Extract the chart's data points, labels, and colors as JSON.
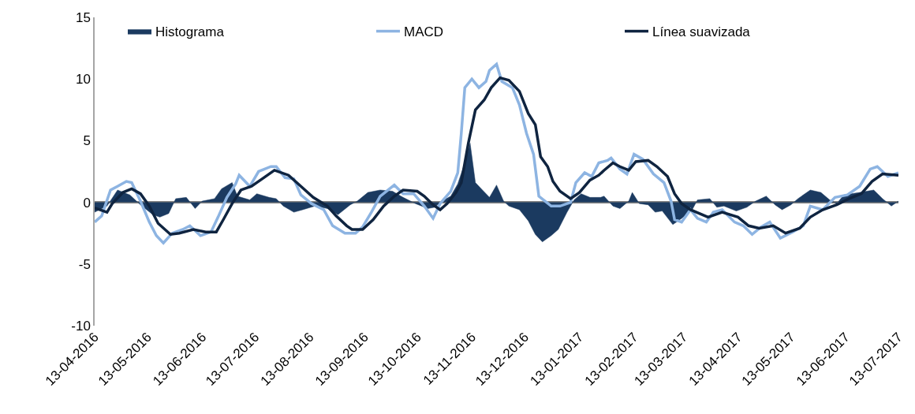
{
  "chart_data": {
    "type": "line",
    "legend": "top",
    "grid": false,
    "marker": "none",
    "line_style": "solid",
    "ref_lines": [
      {
        "axis": "y",
        "value": 0,
        "color": "#808080"
      }
    ],
    "ylim": [
      -10,
      15
    ],
    "yticks": [
      -10,
      -5,
      0,
      5,
      10,
      15
    ],
    "xlim": [
      "2016-04-13",
      "2017-07-13"
    ],
    "xticks": [
      {
        "value": "2016-04-13",
        "label": "13-04-2016"
      },
      {
        "value": "2016-05-13",
        "label": "13-05-2016"
      },
      {
        "value": "2016-06-13",
        "label": "13-06-2016"
      },
      {
        "value": "2016-07-13",
        "label": "13-07-2016"
      },
      {
        "value": "2016-08-13",
        "label": "13-08-2016"
      },
      {
        "value": "2016-09-13",
        "label": "13-09-2016"
      },
      {
        "value": "2016-10-13",
        "label": "13-10-2016"
      },
      {
        "value": "2016-11-13",
        "label": "13-11-2016"
      },
      {
        "value": "2016-12-13",
        "label": "13-12-2016"
      },
      {
        "value": "2017-01-13",
        "label": "13-01-2017"
      },
      {
        "value": "2017-02-13",
        "label": "13-02-2017"
      },
      {
        "value": "2017-03-13",
        "label": "13-03-2017"
      },
      {
        "value": "2017-04-13",
        "label": "13-04-2017"
      },
      {
        "value": "2017-05-13",
        "label": "13-05-2017"
      },
      {
        "value": "2017-06-13",
        "label": "13-06-2017"
      },
      {
        "value": "2017-07-13",
        "label": "13-07-2017"
      }
    ],
    "series": [
      {
        "name": "Histograma",
        "type": "area",
        "color": "#1b3a60",
        "x": [
          "2016-04-13",
          "2016-04-20",
          "2016-04-26",
          "2016-05-03",
          "2016-05-09",
          "2016-05-16",
          "2016-05-20",
          "2016-05-25",
          "2016-05-29",
          "2016-06-04",
          "2016-06-09",
          "2016-06-13",
          "2016-06-20",
          "2016-06-24",
          "2016-06-30",
          "2016-07-03",
          "2016-07-10",
          "2016-07-14",
          "2016-07-21",
          "2016-07-25",
          "2016-07-29",
          "2016-08-04",
          "2016-08-09",
          "2016-08-16",
          "2016-08-23",
          "2016-08-29",
          "2016-09-05",
          "2016-09-09",
          "2016-09-15",
          "2016-09-22",
          "2016-09-29",
          "2016-10-05",
          "2016-10-12",
          "2016-10-19",
          "2016-10-23",
          "2016-10-27",
          "2016-11-01",
          "2016-11-05",
          "2016-11-09",
          "2016-11-12",
          "2016-11-15",
          "2016-11-19",
          "2016-11-23",
          "2016-11-27",
          "2016-12-01",
          "2016-12-04",
          "2016-12-10",
          "2016-12-15",
          "2016-12-19",
          "2016-12-23",
          "2016-12-28",
          "2017-01-01",
          "2017-01-06",
          "2017-01-10",
          "2017-01-14",
          "2017-01-19",
          "2017-01-25",
          "2017-01-27",
          "2017-02-01",
          "2017-02-05",
          "2017-02-10",
          "2017-02-12",
          "2017-02-16",
          "2017-02-21",
          "2017-02-25",
          "2017-03-01",
          "2017-03-07",
          "2017-03-12",
          "2017-03-18",
          "2017-03-21",
          "2017-03-28",
          "2017-04-01",
          "2017-04-05",
          "2017-04-12",
          "2017-04-18",
          "2017-04-23",
          "2017-04-29",
          "2017-05-04",
          "2017-05-08",
          "2017-05-13",
          "2017-05-17",
          "2017-05-24",
          "2017-05-30",
          "2017-06-04",
          "2017-06-08",
          "2017-06-12",
          "2017-06-21",
          "2017-06-29",
          "2017-07-04",
          "2017-07-09",
          "2017-07-13"
        ],
        "values": [
          -0.8,
          -0.3,
          1.0,
          0.6,
          -0.2,
          -1.0,
          -1.2,
          -0.9,
          0.3,
          0.4,
          -0.5,
          0.1,
          0.3,
          1.1,
          1.6,
          0.5,
          0.2,
          0.7,
          0.4,
          0.3,
          -0.3,
          -0.8,
          -0.6,
          -0.3,
          -0.5,
          -1.0,
          -0.2,
          0.1,
          0.8,
          1.0,
          0.9,
          0.4,
          -0.1,
          -0.5,
          -0.4,
          0.1,
          0.5,
          1.5,
          3.2,
          4.8,
          1.6,
          1.0,
          0.4,
          1.4,
          0.1,
          -0.3,
          -0.6,
          -1.5,
          -2.6,
          -3.2,
          -2.7,
          -2.2,
          -0.8,
          0.2,
          0.7,
          0.4,
          0.4,
          0.5,
          -0.3,
          -0.5,
          0.1,
          0.8,
          -0.1,
          -0.2,
          -0.8,
          -0.7,
          -1.8,
          -1.3,
          -0.6,
          0.2,
          0.3,
          -0.4,
          -0.3,
          -0.7,
          -0.4,
          0.1,
          0.5,
          -0.2,
          -0.6,
          -0.2,
          0.3,
          1.0,
          0.8,
          0.2,
          -0.1,
          0.6,
          0.8,
          1.0,
          0.3,
          -0.3,
          0.1
        ]
      },
      {
        "name": "MACD",
        "color": "#8db4e2",
        "x": [
          "2016-04-13",
          "2016-04-17",
          "2016-04-22",
          "2016-04-26",
          "2016-05-01",
          "2016-05-04",
          "2016-05-09",
          "2016-05-14",
          "2016-05-18",
          "2016-05-22",
          "2016-05-27",
          "2016-06-02",
          "2016-06-06",
          "2016-06-12",
          "2016-06-18",
          "2016-06-22",
          "2016-06-27",
          "2016-07-02",
          "2016-07-04",
          "2016-07-10",
          "2016-07-15",
          "2016-07-22",
          "2016-07-25",
          "2016-07-30",
          "2016-08-04",
          "2016-08-08",
          "2016-08-14",
          "2016-08-21",
          "2016-08-26",
          "2016-09-02",
          "2016-09-08",
          "2016-09-12",
          "2016-09-17",
          "2016-09-22",
          "2016-09-30",
          "2016-10-05",
          "2016-10-11",
          "2016-10-17",
          "2016-10-22",
          "2016-10-26",
          "2016-11-01",
          "2016-11-05",
          "2016-11-07",
          "2016-11-09",
          "2016-11-13",
          "2016-11-17",
          "2016-11-21",
          "2016-11-23",
          "2016-11-27",
          "2016-11-30",
          "2016-12-06",
          "2016-12-10",
          "2016-12-14",
          "2016-12-18",
          "2016-12-21",
          "2016-12-28",
          "2017-01-02",
          "2017-01-08",
          "2017-01-11",
          "2017-01-16",
          "2017-01-20",
          "2017-01-24",
          "2017-01-29",
          "2017-01-31",
          "2017-02-05",
          "2017-02-09",
          "2017-02-13",
          "2017-02-18",
          "2017-02-24",
          "2017-03-02",
          "2017-03-06",
          "2017-03-08",
          "2017-03-12",
          "2017-03-17",
          "2017-03-21",
          "2017-03-26",
          "2017-03-30",
          "2017-04-04",
          "2017-04-11",
          "2017-04-16",
          "2017-04-21",
          "2017-04-26",
          "2017-05-01",
          "2017-05-07",
          "2017-05-14",
          "2017-05-20",
          "2017-05-24",
          "2017-05-31",
          "2017-06-07",
          "2017-06-14",
          "2017-06-21",
          "2017-06-27",
          "2017-07-01",
          "2017-07-07",
          "2017-07-13"
        ],
        "values": [
          -1.6,
          -1.1,
          1.0,
          1.3,
          1.7,
          1.6,
          0.1,
          -1.6,
          -2.7,
          -3.3,
          -2.5,
          -2.2,
          -1.9,
          -2.7,
          -2.4,
          -1.2,
          0.4,
          1.5,
          2.2,
          1.3,
          2.5,
          2.9,
          2.9,
          2.0,
          1.9,
          0.6,
          -0.1,
          -0.6,
          -1.9,
          -2.5,
          -2.5,
          -2.0,
          -0.8,
          0.5,
          1.4,
          0.7,
          0.7,
          -0.3,
          -1.3,
          -0.1,
          0.9,
          2.4,
          5.6,
          9.3,
          10.0,
          9.3,
          9.8,
          10.7,
          11.2,
          9.8,
          9.3,
          7.9,
          5.6,
          3.9,
          0.5,
          -0.3,
          -0.3,
          0,
          1.6,
          2.4,
          2.1,
          3.2,
          3.4,
          3.6,
          2.7,
          2.3,
          3.9,
          3.5,
          2.3,
          1.6,
          0.1,
          -1.4,
          -1.6,
          -0.6,
          -1.3,
          -1.6,
          -0.8,
          -0.6,
          -1.6,
          -1.9,
          -2.6,
          -2.0,
          -1.6,
          -2.9,
          -2.4,
          -1.9,
          -0.3,
          -0.6,
          0.4,
          0.6,
          1.3,
          2.7,
          2.9,
          2.1,
          2.4
        ]
      },
      {
        "name": "Línea suavizada",
        "color": "#0f2440",
        "x": [
          "2016-04-13",
          "2016-04-20",
          "2016-04-23",
          "2016-04-29",
          "2016-05-04",
          "2016-05-09",
          "2016-05-14",
          "2016-05-19",
          "2016-05-26",
          "2016-05-31",
          "2016-06-08",
          "2016-06-15",
          "2016-06-21",
          "2016-06-25",
          "2016-06-30",
          "2016-07-05",
          "2016-07-11",
          "2016-07-17",
          "2016-07-24",
          "2016-08-01",
          "2016-08-08",
          "2016-08-15",
          "2016-08-23",
          "2016-08-28",
          "2016-09-03",
          "2016-09-06",
          "2016-09-12",
          "2016-09-18",
          "2016-09-24",
          "2016-09-30",
          "2016-10-05",
          "2016-10-13",
          "2016-10-17",
          "2016-10-22",
          "2016-10-26",
          "2016-10-30",
          "2016-11-04",
          "2016-11-07",
          "2016-11-11",
          "2016-11-15",
          "2016-11-20",
          "2016-11-24",
          "2016-11-29",
          "2016-12-04",
          "2016-12-10",
          "2016-12-15",
          "2016-12-19",
          "2016-12-22",
          "2016-12-26",
          "2016-12-29",
          "2017-01-02",
          "2017-01-08",
          "2017-01-13",
          "2017-01-19",
          "2017-01-24",
          "2017-01-27",
          "2017-02-01",
          "2017-02-05",
          "2017-02-10",
          "2017-02-14",
          "2017-02-21",
          "2017-02-26",
          "2017-03-04",
          "2017-03-08",
          "2017-03-12",
          "2017-03-17",
          "2017-03-27",
          "2017-04-04",
          "2017-04-13",
          "2017-04-19",
          "2017-04-25",
          "2017-05-03",
          "2017-05-10",
          "2017-05-18",
          "2017-05-24",
          "2017-05-31",
          "2017-06-08",
          "2017-06-15",
          "2017-06-22",
          "2017-06-28",
          "2017-07-04",
          "2017-07-13"
        ],
        "values": [
          -0.45,
          -0.8,
          -0.1,
          0.8,
          1.1,
          0.7,
          -0.3,
          -1.7,
          -2.6,
          -2.5,
          -2.2,
          -2.4,
          -2.4,
          -1.4,
          -0.1,
          1.0,
          1.3,
          1.9,
          2.6,
          2.2,
          1.3,
          0.4,
          -0.3,
          -1.1,
          -1.9,
          -2.2,
          -2.2,
          -1.4,
          -0.3,
          0.5,
          1.0,
          0.9,
          0.5,
          -0.2,
          -0.6,
          -0.1,
          0.8,
          1.6,
          4.8,
          7.5,
          8.3,
          9.3,
          10.1,
          9.9,
          9.0,
          7.2,
          6.3,
          3.7,
          2.9,
          1.7,
          0.9,
          0.3,
          0.8,
          1.8,
          2.2,
          2.6,
          3.2,
          2.9,
          2.6,
          3.3,
          3.4,
          2.9,
          2.1,
          0.7,
          -0.1,
          -0.6,
          -1.2,
          -0.8,
          -1.2,
          -1.9,
          -2.1,
          -1.9,
          -2.5,
          -2.1,
          -1.2,
          -0.6,
          -0.2,
          0.3,
          0.7,
          1.7,
          2.3,
          2.2
        ]
      }
    ]
  }
}
